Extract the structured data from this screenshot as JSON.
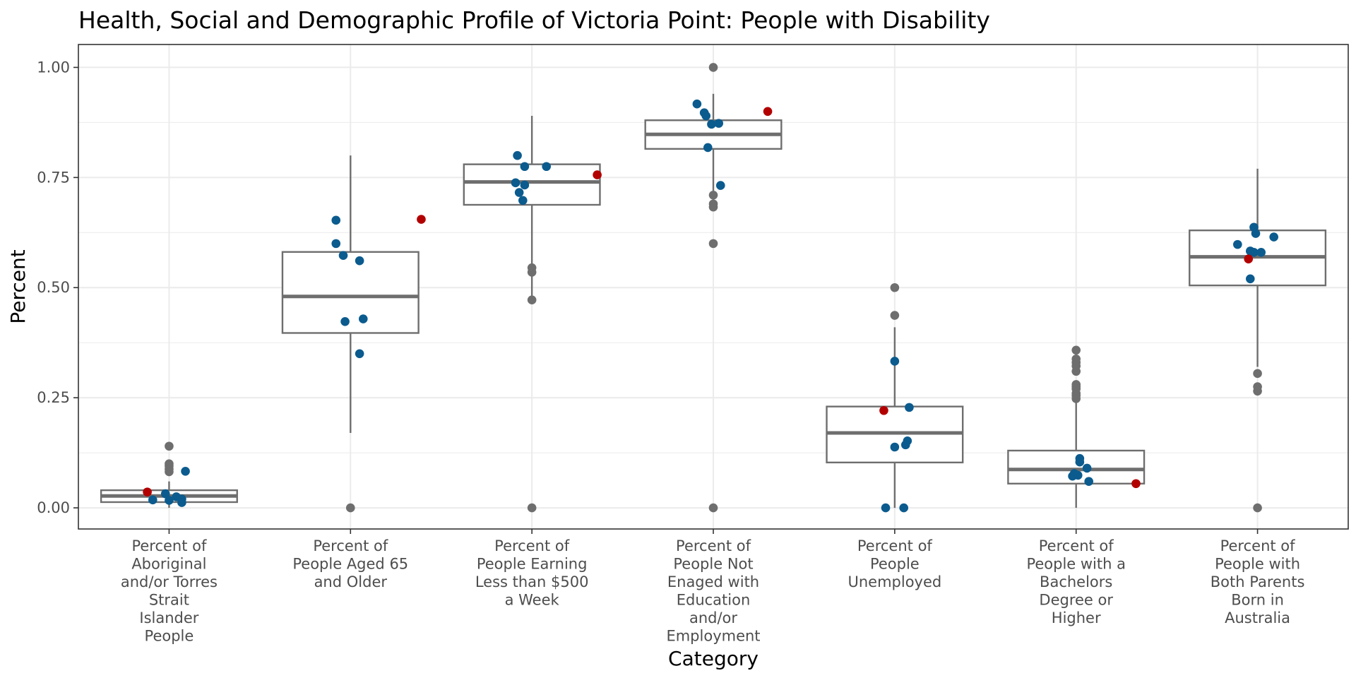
{
  "chart_data": {
    "type": "boxplot",
    "title": "Health, Social and Demographic Profile of Victoria Point: People with Disability",
    "xlabel": "Category",
    "ylabel": "Percent",
    "ylim": [
      -0.048,
      1.052
    ],
    "yticks": [
      "0.00",
      "0.25",
      "0.50",
      "0.75",
      "1.00"
    ],
    "ytick_values": [
      0,
      0.25,
      0.5,
      0.75,
      1.0
    ],
    "grid": true,
    "colors": {
      "box": "#6e6e6e",
      "outlier": "#6e6e6e",
      "neighbour_point": "#0b5b8e",
      "highlight_point": "#b20000",
      "grid": "#ebebeb",
      "panel_border": "#333333"
    },
    "categories": [
      "Percent of Aboriginal and/or Torres Strait Islander People",
      "Percent of People Aged 65 and Older",
      "Percent of People Earning Less than $500 a Week",
      "Percent of People Not Enaged with Education and/or Employment",
      "Percent of People Unemployed",
      "Percent of People with a Bachelors Degree or Higher",
      "Percent of People with Both Parents Born in Australia"
    ],
    "category_label_lines": [
      [
        "Percent of",
        "Aboriginal",
        "and/or Torres",
        "Strait",
        "Islander",
        "People"
      ],
      [
        "Percent of",
        "People Aged 65",
        "and Older"
      ],
      [
        "Percent of",
        "People Earning",
        "Less than $500",
        "a Week"
      ],
      [
        "Percent of",
        "People Not",
        "Enaged with",
        "Education",
        "and/or",
        "Employment"
      ],
      [
        "Percent of",
        "People",
        "Unemployed"
      ],
      [
        "Percent of",
        "People with a",
        "Bachelors",
        "Degree or",
        "Higher"
      ],
      [
        "Percent of",
        "People with",
        "Both Parents",
        "Born in",
        "Australia"
      ]
    ],
    "boxes": [
      {
        "min": 0.0,
        "q1": 0.013,
        "median": 0.027,
        "q3": 0.04,
        "max": 0.06,
        "outliers": [
          0.14,
          0.1,
          0.095,
          0.088,
          0.082
        ]
      },
      {
        "min": 0.17,
        "q1": 0.397,
        "median": 0.48,
        "q3": 0.581,
        "max": 0.8,
        "outliers": [
          0.0
        ]
      },
      {
        "min": 0.48,
        "q1": 0.688,
        "median": 0.74,
        "q3": 0.78,
        "max": 0.89,
        "outliers": [
          0.545,
          0.535,
          0.472,
          0.0
        ]
      },
      {
        "min": 0.72,
        "q1": 0.815,
        "median": 0.848,
        "q3": 0.88,
        "max": 0.94,
        "outliers": [
          1.0,
          0.71,
          0.69,
          0.683,
          0.6,
          0.0
        ]
      },
      {
        "min": 0.0,
        "q1": 0.103,
        "median": 0.17,
        "q3": 0.23,
        "max": 0.41,
        "outliers": [
          0.5,
          0.437
        ]
      },
      {
        "min": 0.0,
        "q1": 0.055,
        "median": 0.087,
        "q3": 0.13,
        "max": 0.24,
        "outliers": [
          0.358,
          0.338,
          0.33,
          0.322,
          0.31,
          0.28,
          0.275,
          0.27,
          0.26,
          0.255,
          0.248
        ]
      },
      {
        "min": 0.32,
        "q1": 0.505,
        "median": 0.57,
        "q3": 0.63,
        "max": 0.77,
        "outliers": [
          0.305,
          0.275,
          0.265,
          0.0
        ]
      }
    ],
    "neighbour_points": [
      {
        "category": 0,
        "x_jitter": -0.09,
        "y": 0.018
      },
      {
        "category": 0,
        "x_jitter": -0.02,
        "y": 0.032
      },
      {
        "category": 0,
        "x_jitter": 0.0,
        "y": 0.017
      },
      {
        "category": 0,
        "x_jitter": 0.04,
        "y": 0.025
      },
      {
        "category": 0,
        "x_jitter": 0.07,
        "y": 0.02
      },
      {
        "category": 0,
        "x_jitter": 0.07,
        "y": 0.012
      },
      {
        "category": 0,
        "x_jitter": 0.09,
        "y": 0.083
      },
      {
        "category": 1,
        "x_jitter": -0.08,
        "y": 0.653
      },
      {
        "category": 1,
        "x_jitter": -0.08,
        "y": 0.6
      },
      {
        "category": 1,
        "x_jitter": -0.04,
        "y": 0.573
      },
      {
        "category": 1,
        "x_jitter": 0.05,
        "y": 0.561
      },
      {
        "category": 1,
        "x_jitter": -0.03,
        "y": 0.423
      },
      {
        "category": 1,
        "x_jitter": 0.07,
        "y": 0.429
      },
      {
        "category": 1,
        "x_jitter": 0.05,
        "y": 0.35
      },
      {
        "category": 2,
        "x_jitter": -0.08,
        "y": 0.8
      },
      {
        "category": 2,
        "x_jitter": -0.04,
        "y": 0.775
      },
      {
        "category": 2,
        "x_jitter": 0.08,
        "y": 0.775
      },
      {
        "category": 2,
        "x_jitter": -0.09,
        "y": 0.738
      },
      {
        "category": 2,
        "x_jitter": -0.04,
        "y": 0.733
      },
      {
        "category": 2,
        "x_jitter": -0.07,
        "y": 0.716
      },
      {
        "category": 2,
        "x_jitter": -0.05,
        "y": 0.698
      },
      {
        "category": 3,
        "x_jitter": -0.09,
        "y": 0.917
      },
      {
        "category": 3,
        "x_jitter": -0.05,
        "y": 0.897
      },
      {
        "category": 3,
        "x_jitter": -0.04,
        "y": 0.89
      },
      {
        "category": 3,
        "x_jitter": -0.01,
        "y": 0.871
      },
      {
        "category": 3,
        "x_jitter": 0.03,
        "y": 0.873
      },
      {
        "category": 3,
        "x_jitter": -0.03,
        "y": 0.818
      },
      {
        "category": 3,
        "x_jitter": 0.04,
        "y": 0.732
      },
      {
        "category": 4,
        "x_jitter": 0.0,
        "y": 0.333
      },
      {
        "category": 4,
        "x_jitter": 0.08,
        "y": 0.228
      },
      {
        "category": 4,
        "x_jitter": 0.07,
        "y": 0.152
      },
      {
        "category": 4,
        "x_jitter": 0.06,
        "y": 0.143
      },
      {
        "category": 4,
        "x_jitter": 0.0,
        "y": 0.138
      },
      {
        "category": 4,
        "x_jitter": -0.05,
        "y": 0.0
      },
      {
        "category": 4,
        "x_jitter": 0.05,
        "y": 0.0
      },
      {
        "category": 5,
        "x_jitter": 0.02,
        "y": 0.112
      },
      {
        "category": 5,
        "x_jitter": 0.02,
        "y": 0.104
      },
      {
        "category": 5,
        "x_jitter": 0.06,
        "y": 0.09
      },
      {
        "category": 5,
        "x_jitter": -0.01,
        "y": 0.078
      },
      {
        "category": 5,
        "x_jitter": -0.02,
        "y": 0.072
      },
      {
        "category": 5,
        "x_jitter": 0.01,
        "y": 0.074
      },
      {
        "category": 5,
        "x_jitter": 0.07,
        "y": 0.06
      },
      {
        "category": 6,
        "x_jitter": -0.02,
        "y": 0.637
      },
      {
        "category": 6,
        "x_jitter": -0.01,
        "y": 0.623
      },
      {
        "category": 6,
        "x_jitter": 0.09,
        "y": 0.615
      },
      {
        "category": 6,
        "x_jitter": -0.11,
        "y": 0.598
      },
      {
        "category": 6,
        "x_jitter": -0.02,
        "y": 0.58
      },
      {
        "category": 6,
        "x_jitter": 0.02,
        "y": 0.58
      },
      {
        "category": 6,
        "x_jitter": -0.04,
        "y": 0.583
      },
      {
        "category": 6,
        "x_jitter": -0.04,
        "y": 0.52
      }
    ],
    "highlight_points": [
      {
        "category": 0,
        "x_jitter": -0.12,
        "y": 0.036
      },
      {
        "category": 1,
        "x_jitter": 0.39,
        "y": 0.655
      },
      {
        "category": 2,
        "x_jitter": 0.36,
        "y": 0.756
      },
      {
        "category": 3,
        "x_jitter": 0.3,
        "y": 0.9
      },
      {
        "category": 4,
        "x_jitter": -0.06,
        "y": 0.221
      },
      {
        "category": 5,
        "x_jitter": 0.33,
        "y": 0.055
      },
      {
        "category": 6,
        "x_jitter": -0.05,
        "y": 0.565
      }
    ]
  }
}
